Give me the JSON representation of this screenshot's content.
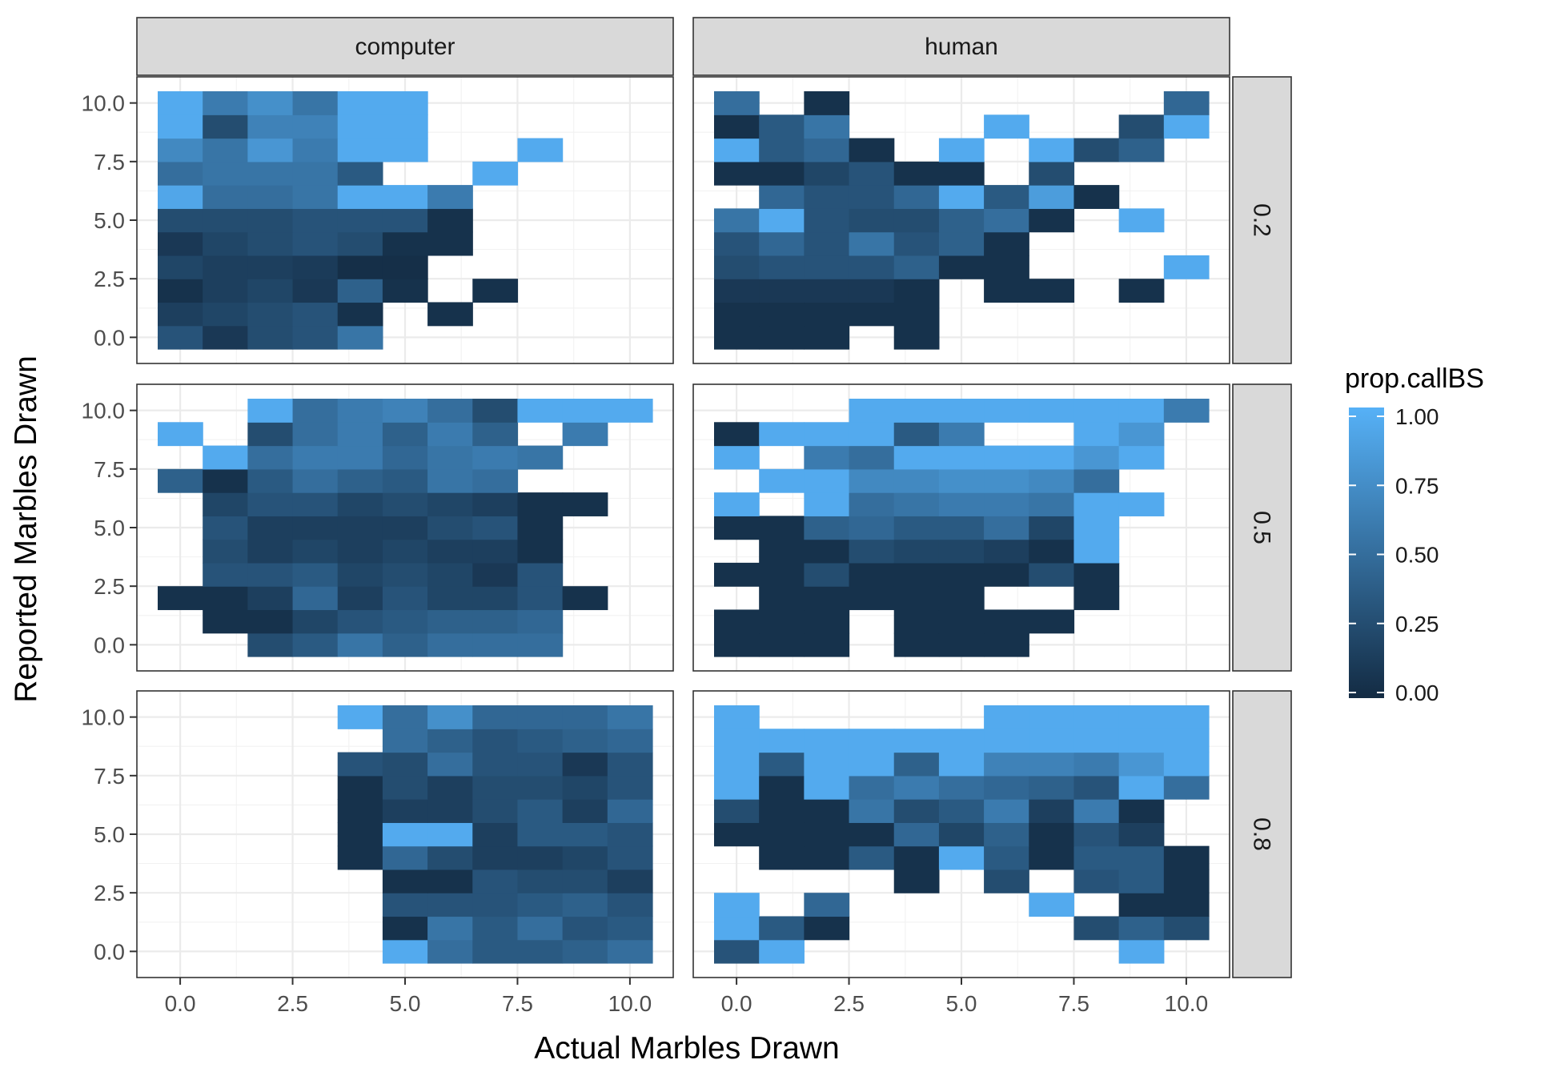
{
  "chart_data": {
    "type": "heatmap",
    "xlabel": "Actual Marbles Drawn",
    "ylabel": "Reported Marbles Drawn",
    "xlim": [
      -0.5,
      10.5
    ],
    "ylim": [
      -0.5,
      10.5
    ],
    "x_ticks": [
      "0.0",
      "2.5",
      "5.0",
      "7.5",
      "10.0"
    ],
    "y_ticks": [
      "0.0",
      "2.5",
      "5.0",
      "7.5",
      "10.0"
    ],
    "facet_cols": [
      "computer",
      "human"
    ],
    "facet_rows": [
      "0.2",
      "0.5",
      "0.8"
    ],
    "legend": {
      "title": "prop.callBS",
      "position": "right",
      "labels": [
        "1.00",
        "0.75",
        "0.50",
        "0.25",
        "0.00"
      ],
      "low_color": "#132B43",
      "high_color": "#56B1F7"
    },
    "grid": true,
    "panels": [
      {
        "col": "computer",
        "row": "0.2",
        "grid": [
          [
            0.3,
            0.1,
            0.25,
            0.3,
            0.55,
            null,
            null,
            null,
            null,
            null,
            null
          ],
          [
            0.15,
            0.2,
            0.25,
            0.3,
            0.05,
            null,
            0.05,
            null,
            null,
            null,
            null
          ],
          [
            0.05,
            0.15,
            0.2,
            0.1,
            0.4,
            0.05,
            null,
            0.05,
            null,
            null,
            null
          ],
          [
            0.2,
            0.15,
            0.15,
            0.12,
            0.03,
            0.03,
            null,
            null,
            null,
            null,
            null
          ],
          [
            0.1,
            0.2,
            0.25,
            0.3,
            0.25,
            0.05,
            0.05,
            null,
            null,
            null,
            null
          ],
          [
            0.25,
            0.25,
            0.25,
            0.3,
            0.3,
            0.3,
            0.05,
            null,
            null,
            null,
            null
          ],
          [
            0.92,
            0.5,
            0.5,
            0.55,
            0.95,
            0.95,
            0.6,
            null,
            null,
            null,
            null
          ],
          [
            0.5,
            0.55,
            0.55,
            0.55,
            0.35,
            null,
            null,
            0.95,
            null,
            null,
            null
          ],
          [
            0.7,
            0.55,
            0.8,
            0.6,
            0.95,
            0.95,
            null,
            null,
            0.95,
            null,
            null
          ],
          [
            0.95,
            0.25,
            0.65,
            0.65,
            0.95,
            0.95,
            null,
            null,
            null,
            null,
            null
          ],
          [
            0.95,
            0.6,
            0.75,
            0.55,
            0.95,
            0.95,
            null,
            null,
            null,
            null,
            null
          ]
        ]
      },
      {
        "col": "human",
        "row": "0.2",
        "grid": [
          [
            0.05,
            0.05,
            0.05,
            null,
            0.05,
            null,
            null,
            null,
            null,
            null,
            null
          ],
          [
            0.05,
            0.05,
            0.05,
            0.05,
            0.05,
            null,
            null,
            null,
            null,
            null,
            null
          ],
          [
            0.1,
            0.1,
            0.1,
            0.1,
            0.05,
            null,
            0.05,
            0.05,
            null,
            0.05,
            null
          ],
          [
            0.25,
            0.3,
            0.3,
            0.3,
            0.4,
            0.05,
            0.05,
            null,
            null,
            null,
            0.95
          ],
          [
            0.3,
            0.45,
            0.3,
            0.55,
            0.3,
            0.4,
            0.05,
            null,
            null,
            null,
            null
          ],
          [
            0.55,
            0.95,
            0.3,
            0.25,
            0.25,
            0.4,
            0.5,
            0.05,
            null,
            0.95,
            null
          ],
          [
            null,
            0.45,
            0.3,
            0.3,
            0.45,
            0.95,
            0.35,
            0.85,
            0.05,
            null,
            null
          ],
          [
            0.05,
            0.05,
            0.2,
            0.3,
            0.05,
            0.05,
            null,
            0.25,
            null,
            null,
            null
          ],
          [
            0.95,
            0.35,
            0.45,
            0.05,
            null,
            0.95,
            null,
            0.95,
            0.25,
            0.4,
            null
          ],
          [
            0.05,
            0.35,
            0.55,
            null,
            null,
            null,
            0.95,
            null,
            null,
            0.25,
            0.95
          ],
          [
            0.5,
            null,
            0.05,
            null,
            null,
            null,
            null,
            null,
            null,
            null,
            0.45
          ]
        ]
      },
      {
        "col": "computer",
        "row": "0.5",
        "grid": [
          [
            null,
            null,
            0.25,
            0.35,
            0.55,
            0.4,
            0.5,
            0.5,
            0.5,
            null,
            null
          ],
          [
            null,
            0.05,
            0.05,
            0.2,
            0.3,
            0.35,
            0.4,
            0.4,
            0.45,
            null,
            null
          ],
          [
            0.05,
            0.05,
            0.15,
            0.45,
            0.15,
            0.3,
            0.2,
            0.2,
            0.3,
            0.05,
            null
          ],
          [
            null,
            0.3,
            0.3,
            0.35,
            0.2,
            0.25,
            0.2,
            0.1,
            0.3,
            null,
            null
          ],
          [
            null,
            0.25,
            0.15,
            0.2,
            0.15,
            0.2,
            0.15,
            0.15,
            0.05,
            null,
            null
          ],
          [
            null,
            0.3,
            0.15,
            0.15,
            0.15,
            0.15,
            0.25,
            0.3,
            0.05,
            null,
            null
          ],
          [
            null,
            0.2,
            0.3,
            0.3,
            0.2,
            0.25,
            0.2,
            0.15,
            0.05,
            0.05,
            null
          ],
          [
            0.4,
            0.05,
            0.35,
            0.5,
            0.4,
            0.35,
            0.55,
            0.5,
            null,
            null,
            null
          ],
          [
            null,
            0.95,
            0.5,
            0.6,
            0.6,
            0.45,
            0.55,
            0.6,
            0.55,
            null,
            null
          ],
          [
            0.95,
            null,
            0.25,
            0.5,
            0.6,
            0.4,
            0.6,
            0.4,
            null,
            0.6,
            null
          ],
          [
            null,
            null,
            0.95,
            0.5,
            0.6,
            0.65,
            0.5,
            0.25,
            0.95,
            0.95,
            0.95
          ]
        ]
      },
      {
        "col": "human",
        "row": "0.5",
        "grid": [
          [
            0.05,
            0.05,
            0.05,
            null,
            0.05,
            0.05,
            0.05,
            null,
            null,
            null,
            null
          ],
          [
            0.05,
            0.05,
            0.05,
            null,
            0.05,
            0.05,
            0.05,
            0.05,
            null,
            null,
            null
          ],
          [
            null,
            0.05,
            0.05,
            0.05,
            0.05,
            0.05,
            null,
            null,
            0.05,
            null,
            null
          ],
          [
            0.05,
            0.05,
            0.25,
            0.05,
            0.05,
            0.05,
            0.05,
            0.25,
            0.05,
            null,
            null
          ],
          [
            null,
            0.05,
            0.05,
            0.25,
            0.2,
            0.2,
            0.15,
            0.05,
            0.95,
            null,
            null
          ],
          [
            0.05,
            0.05,
            0.4,
            0.45,
            0.35,
            0.35,
            0.5,
            0.2,
            0.95,
            null,
            null
          ],
          [
            0.95,
            null,
            0.95,
            0.5,
            0.55,
            0.6,
            0.6,
            0.55,
            0.95,
            0.95,
            null
          ],
          [
            null,
            0.95,
            0.95,
            0.7,
            0.7,
            0.75,
            0.75,
            0.7,
            0.5,
            null,
            null
          ],
          [
            0.95,
            null,
            0.6,
            0.5,
            0.95,
            0.95,
            0.95,
            0.95,
            0.8,
            0.95,
            null
          ],
          [
            0.05,
            0.95,
            0.95,
            0.95,
            0.35,
            0.6,
            null,
            null,
            0.95,
            0.8,
            null
          ],
          [
            null,
            null,
            null,
            0.95,
            0.95,
            0.95,
            0.95,
            0.95,
            0.95,
            0.95,
            0.6
          ]
        ]
      },
      {
        "col": "computer",
        "row": "0.8",
        "grid": [
          [
            null,
            null,
            null,
            null,
            null,
            0.95,
            0.5,
            0.35,
            0.35,
            0.4,
            0.5
          ],
          [
            null,
            null,
            null,
            null,
            null,
            0.05,
            0.55,
            0.35,
            0.5,
            0.3,
            0.35
          ],
          [
            null,
            null,
            null,
            null,
            null,
            0.3,
            0.3,
            0.3,
            0.35,
            0.4,
            0.3
          ],
          [
            null,
            null,
            null,
            null,
            null,
            0.05,
            0.05,
            0.3,
            0.25,
            0.25,
            0.15
          ],
          [
            null,
            null,
            null,
            null,
            0.05,
            0.45,
            0.25,
            0.15,
            0.15,
            0.2,
            0.3
          ],
          [
            null,
            null,
            null,
            null,
            0.05,
            0.95,
            0.95,
            0.15,
            0.35,
            0.35,
            0.3
          ],
          [
            null,
            null,
            null,
            null,
            0.05,
            0.15,
            0.15,
            0.25,
            0.35,
            0.15,
            0.45
          ],
          [
            null,
            null,
            null,
            null,
            0.05,
            0.25,
            0.15,
            0.25,
            0.25,
            0.2,
            0.3
          ],
          [
            null,
            null,
            null,
            null,
            0.3,
            0.25,
            0.5,
            0.3,
            0.3,
            0.1,
            0.3
          ],
          [
            null,
            null,
            null,
            null,
            null,
            0.5,
            0.4,
            0.3,
            0.35,
            0.4,
            0.45
          ],
          [
            null,
            null,
            null,
            null,
            0.95,
            0.5,
            0.75,
            0.45,
            0.45,
            0.45,
            0.55
          ]
        ]
      },
      {
        "col": "human",
        "row": "0.8",
        "grid": [
          [
            0.3,
            0.95,
            null,
            null,
            null,
            null,
            null,
            null,
            null,
            0.95,
            null
          ],
          [
            0.95,
            0.35,
            0.05,
            null,
            null,
            null,
            null,
            null,
            0.25,
            0.4,
            0.25
          ],
          [
            0.95,
            null,
            0.45,
            null,
            null,
            null,
            null,
            0.95,
            null,
            0.05,
            0.05
          ],
          [
            null,
            null,
            null,
            null,
            0.05,
            null,
            0.25,
            null,
            0.3,
            0.35,
            0.05
          ],
          [
            null,
            0.05,
            0.05,
            0.35,
            0.05,
            0.95,
            0.35,
            0.05,
            0.35,
            0.35,
            0.05
          ],
          [
            0.05,
            0.05,
            0.05,
            0.05,
            0.45,
            0.2,
            0.4,
            0.05,
            0.3,
            0.15,
            null
          ],
          [
            0.25,
            0.05,
            0.05,
            0.55,
            0.25,
            0.35,
            0.6,
            0.15,
            0.6,
            0.05,
            null
          ],
          [
            0.95,
            0.05,
            0.95,
            0.5,
            0.6,
            0.5,
            0.45,
            0.4,
            0.3,
            0.95,
            0.5
          ],
          [
            0.95,
            0.35,
            0.95,
            0.95,
            0.4,
            0.95,
            0.65,
            0.65,
            0.6,
            0.8,
            0.95
          ],
          [
            0.95,
            0.95,
            0.95,
            0.95,
            0.95,
            0.95,
            0.95,
            0.95,
            0.95,
            0.95,
            0.95
          ],
          [
            0.95,
            null,
            null,
            null,
            null,
            null,
            0.95,
            0.95,
            0.95,
            0.95,
            0.95
          ]
        ]
      }
    ]
  }
}
